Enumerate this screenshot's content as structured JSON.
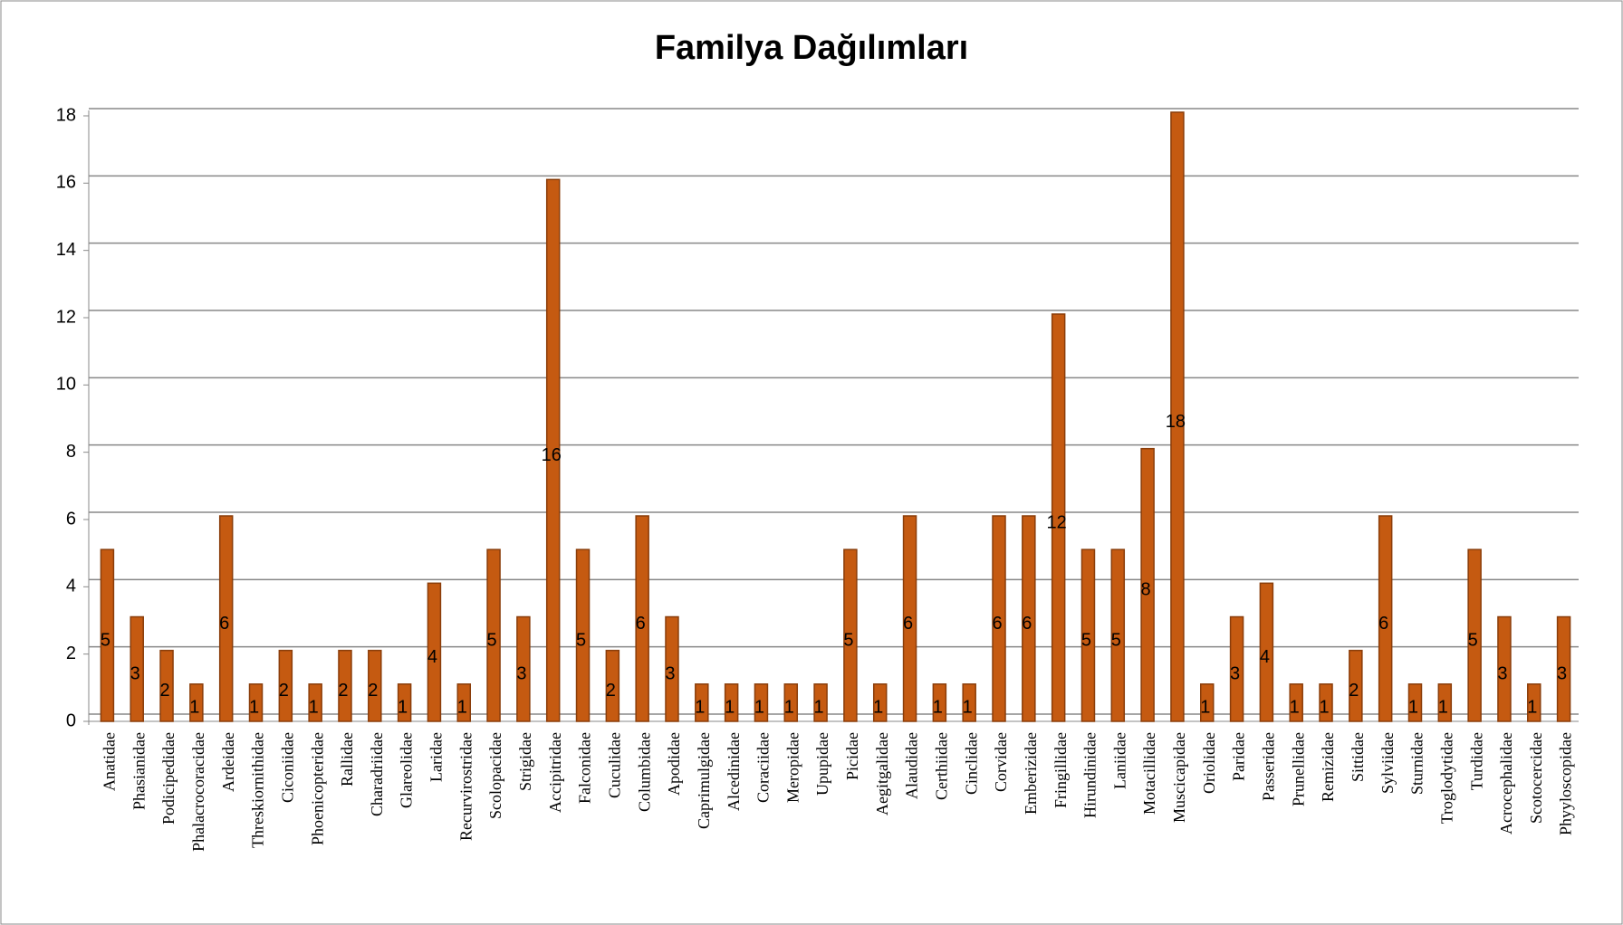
{
  "chart_data": {
    "type": "bar",
    "title": "Familya Dağılımları",
    "categories": [
      "Anatidae",
      "Phasianidae",
      "Podicipedidae",
      "Phalacrocoracidae",
      "Ardeidae",
      "Threskiornithidae",
      "Ciconiidae",
      "Phoenicopteridae",
      "Rallidae",
      "Charadriidae",
      "Glareolidae",
      "Laridae",
      "Recurvirostridae",
      "Scolopacidae",
      "Strigidae",
      "Accipitridae",
      "Falconidae",
      "Cuculidae",
      "Columbidae",
      "Apodidae",
      "Caprimulgidae",
      "Alcedinidae",
      "Coraciidae",
      "Meropidae",
      "Upupidae",
      "Picidae",
      "Aegitgalidae",
      "Alaudidae",
      "Certhiidae",
      "Cinclidae",
      "Corvidae",
      "Emberizidae",
      "Fringillidae",
      "Hirundinidae",
      "Laniidae",
      "Motacillidae",
      "Muscicapidae",
      "Oriolidae",
      "Paridae",
      "Passeridae",
      "Prunellidae",
      "Remizidae",
      "Sittidae",
      "Sylviidae",
      "Sturnidae",
      "Troglodytidae",
      "Turdidae",
      "Acrocephalidae",
      "Scotocercidae",
      "Phyyloscopidae"
    ],
    "values": [
      5,
      3,
      2,
      1,
      6,
      1,
      2,
      1,
      2,
      2,
      1,
      4,
      1,
      5,
      3,
      16,
      5,
      2,
      6,
      3,
      1,
      1,
      1,
      1,
      1,
      5,
      1,
      6,
      1,
      1,
      6,
      6,
      12,
      5,
      5,
      8,
      18,
      1,
      3,
      4,
      1,
      1,
      2,
      6,
      1,
      1,
      5,
      3,
      1,
      3
    ],
    "color": "#c55a11",
    "ylim": [
      0,
      18
    ],
    "yticks": [
      0,
      2,
      4,
      6,
      8,
      10,
      12,
      14,
      16,
      18
    ],
    "grid": true
  }
}
